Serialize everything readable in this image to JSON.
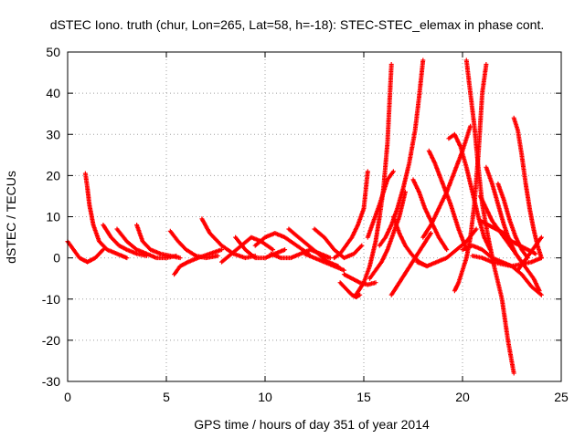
{
  "chart_data": {
    "type": "scatter",
    "title": "dSTEC Iono. truth (chur, Lon=265, Lat=58, h=-18): STEC-STEC_elemax in phase cont.",
    "xlabel": "GPS time / hours of day 351 of year 2014",
    "ylabel": "dSTEC  / TECUs",
    "xlim": [
      0,
      25
    ],
    "ylim": [
      -30,
      50
    ],
    "x_ticks": [
      0,
      5,
      10,
      15,
      20,
      25
    ],
    "y_ticks": [
      -30,
      -20,
      -10,
      0,
      10,
      20,
      30,
      40,
      50
    ],
    "grid": true,
    "legend": "none",
    "marker": "plus",
    "color": "#ff0000",
    "arcs": [
      {
        "x": [
          0.0,
          0.3,
          0.6,
          1.0,
          1.4,
          1.8
        ],
        "y": [
          4,
          2,
          0,
          -1,
          0,
          2
        ]
      },
      {
        "x": [
          0.9,
          1.0,
          1.1,
          1.3,
          1.6,
          2.0,
          2.5,
          3.0
        ],
        "y": [
          20.5,
          17,
          13,
          8,
          4,
          2,
          1,
          0
        ]
      },
      {
        "x": [
          1.8,
          2.2,
          2.6,
          3.0,
          3.5,
          4.0
        ],
        "y": [
          8,
          5,
          3,
          2,
          1,
          0.5
        ]
      },
      {
        "x": [
          2.5,
          3.0,
          3.5,
          4.0,
          4.5,
          5.0,
          5.5
        ],
        "y": [
          7,
          4,
          2,
          1,
          0,
          0,
          0.5
        ]
      },
      {
        "x": [
          3.5,
          3.8,
          4.2,
          4.7,
          5.2,
          5.7
        ],
        "y": [
          8,
          4,
          2,
          1,
          0.5,
          0
        ]
      },
      {
        "x": [
          5.2,
          5.6,
          6.0,
          6.5,
          7.0,
          7.6
        ],
        "y": [
          6.5,
          4,
          2,
          0.5,
          0,
          0.5
        ]
      },
      {
        "x": [
          5.4,
          5.7,
          6.1,
          6.6,
          7.2,
          7.8
        ],
        "y": [
          -4,
          -2,
          -1,
          0,
          1,
          2
        ]
      },
      {
        "x": [
          6.8,
          7.2,
          7.8,
          8.4,
          9.0,
          9.5
        ],
        "y": [
          9.5,
          6,
          3,
          1,
          0,
          0.5
        ]
      },
      {
        "x": [
          7.8,
          8.3,
          8.8,
          9.3,
          9.8,
          10.4
        ],
        "y": [
          -1,
          1,
          3,
          5,
          4,
          2
        ]
      },
      {
        "x": [
          8.5,
          9.0,
          9.5,
          10.0,
          10.5,
          11.0
        ],
        "y": [
          5,
          2,
          0,
          0,
          1,
          2
        ]
      },
      {
        "x": [
          9.5,
          10.0,
          10.5,
          11.0,
          11.6,
          12.2
        ],
        "y": [
          3,
          5,
          6,
          5,
          3,
          1
        ]
      },
      {
        "x": [
          10.3,
          10.8,
          11.3,
          11.8,
          12.3,
          12.8,
          13.3
        ],
        "y": [
          1,
          0,
          0,
          1,
          2,
          1,
          0
        ]
      },
      {
        "x": [
          11.2,
          11.7,
          12.2,
          12.7,
          13.2,
          13.7
        ],
        "y": [
          7,
          5,
          3,
          1,
          -1,
          -2
        ]
      },
      {
        "x": [
          12.5,
          13.0,
          13.5,
          14.0,
          14.5,
          14.9
        ],
        "y": [
          7,
          5,
          2,
          0,
          1,
          3
        ]
      },
      {
        "x": [
          12.0,
          12.5,
          13.0,
          13.5,
          14.0
        ],
        "y": [
          1,
          0,
          -1,
          -2,
          -3
        ]
      },
      {
        "x": [
          13.5,
          13.8,
          14.1,
          14.4,
          14.7,
          15.0,
          15.2
        ],
        "y": [
          0,
          1,
          3,
          5,
          8,
          12,
          21
        ]
      },
      {
        "x": [
          13.8,
          14.0,
          14.2,
          14.4,
          14.6,
          14.8
        ],
        "y": [
          -6,
          -7,
          -8,
          -9,
          -9.5,
          -9
        ]
      },
      {
        "x": [
          14.0,
          14.4,
          14.8,
          15.2,
          15.6
        ],
        "y": [
          -4,
          -5,
          -6,
          -6.5,
          -6
        ]
      },
      {
        "x": [
          14.6,
          15.0,
          15.3,
          15.6,
          15.8,
          16.0,
          16.2,
          16.4
        ],
        "y": [
          -9,
          -6,
          -2,
          4,
          10,
          17,
          28,
          47
        ]
      },
      {
        "x": [
          15.3,
          15.6,
          15.9,
          16.2,
          16.5,
          16.8,
          17.1
        ],
        "y": [
          -5,
          -3,
          -1,
          2,
          6,
          10,
          16
        ]
      },
      {
        "x": [
          15.2,
          15.5,
          15.8,
          16.0,
          16.2,
          16.5
        ],
        "y": [
          5,
          9,
          13,
          16,
          19,
          21
        ]
      },
      {
        "x": [
          15.8,
          16.1,
          16.4,
          16.7,
          17.0,
          17.3,
          17.6,
          17.8,
          18.0
        ],
        "y": [
          3,
          5,
          8,
          12,
          17,
          23,
          31,
          39,
          48
        ]
      },
      {
        "x": [
          16.4,
          16.8,
          17.2,
          17.6,
          18.0,
          18.4
        ],
        "y": [
          -9,
          -6,
          -3,
          0,
          3,
          6
        ]
      },
      {
        "x": [
          16.5,
          16.8,
          17.1,
          17.4,
          17.8,
          18.2
        ],
        "y": [
          10,
          6,
          3,
          1,
          -1,
          -2
        ]
      },
      {
        "x": [
          17.5,
          17.8,
          18.1,
          18.4,
          18.8,
          19.2
        ],
        "y": [
          19,
          16,
          12,
          9,
          5,
          2
        ]
      },
      {
        "x": [
          17.7,
          18.2,
          18.7,
          19.2,
          19.7,
          20.2,
          20.7
        ],
        "y": [
          -1,
          -2,
          -1,
          0,
          2,
          4,
          7
        ]
      },
      {
        "x": [
          18.0,
          18.4,
          18.8,
          19.2,
          19.6,
          20.0,
          20.4
        ],
        "y": [
          5,
          8,
          12,
          16,
          21,
          26,
          32
        ]
      },
      {
        "x": [
          18.3,
          18.6,
          19.0,
          19.4,
          19.8,
          20.2
        ],
        "y": [
          26,
          23,
          18,
          13,
          7,
          2
        ]
      },
      {
        "x": [
          19.6,
          19.8,
          20.0,
          20.2,
          20.4,
          20.6,
          20.8,
          21.0,
          21.2
        ],
        "y": [
          -8,
          -6,
          -3,
          0,
          5,
          13,
          25,
          40,
          47
        ]
      },
      {
        "x": [
          19.3,
          19.6,
          19.9,
          20.2,
          20.5,
          20.8,
          21.1,
          21.4
        ],
        "y": [
          29,
          30,
          27,
          22,
          16,
          10,
          5,
          2
        ]
      },
      {
        "x": [
          20.2,
          20.4,
          20.6,
          20.8,
          21.0,
          21.3,
          21.6,
          22.0,
          22.3,
          22.6
        ],
        "y": [
          48,
          40,
          32,
          22,
          13,
          5,
          -2,
          -10,
          -20,
          -28
        ]
      },
      {
        "x": [
          20.0,
          20.5,
          21.0,
          21.5,
          22.0,
          22.5,
          23.0,
          23.5,
          24.0
        ],
        "y": [
          2,
          3,
          2,
          0,
          -1,
          -2,
          -4,
          -7,
          -9
        ]
      },
      {
        "x": [
          20.5,
          21.0,
          21.5,
          22.0,
          22.5,
          23.0,
          23.5,
          24.0
        ],
        "y": [
          0.5,
          0,
          -1,
          -1.5,
          -2,
          -1.5,
          -1,
          0
        ]
      },
      {
        "x": [
          20.9,
          21.2,
          21.5,
          21.8,
          22.1,
          22.4,
          22.7,
          23.0,
          23.3,
          23.6,
          23.9
        ],
        "y": [
          15,
          12,
          9,
          7,
          5,
          3,
          1,
          -1,
          -3,
          -5,
          -8
        ]
      },
      {
        "x": [
          21.2,
          21.5,
          21.8,
          22.1,
          22.4,
          22.7,
          23.0
        ],
        "y": [
          22,
          18,
          13,
          8,
          4,
          1,
          -1
        ]
      },
      {
        "x": [
          20.9,
          21.3,
          21.7,
          22.1,
          22.5,
          22.9,
          23.3,
          23.7
        ],
        "y": [
          9,
          8,
          7,
          6,
          4,
          3,
          2,
          1
        ]
      },
      {
        "x": [
          21.8,
          22.1,
          22.4,
          22.7,
          23.0,
          23.3
        ],
        "y": [
          18,
          14,
          9,
          5,
          2,
          0
        ]
      },
      {
        "x": [
          22.6,
          22.8,
          23.0,
          23.2,
          23.4,
          23.6,
          23.8,
          24.0
        ],
        "y": [
          34,
          31,
          25,
          18,
          12,
          7,
          3,
          0
        ]
      },
      {
        "x": [
          22.8,
          23.1,
          23.4,
          23.7,
          24.0
        ],
        "y": [
          -3,
          -1,
          1,
          3,
          5
        ]
      }
    ]
  }
}
